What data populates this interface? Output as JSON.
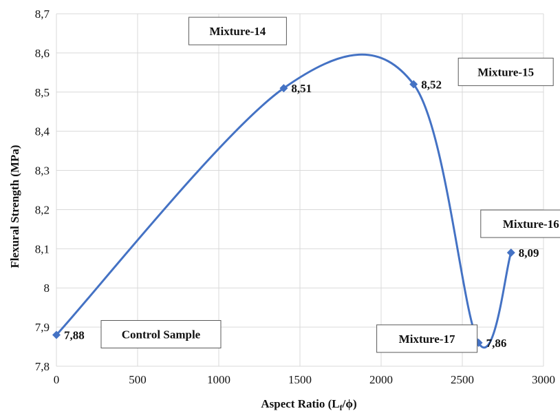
{
  "chart_data": {
    "type": "line",
    "title": "",
    "xlabel": "Aspect Ratio (L",
    "xlabel_sub": "f",
    "xlabel_tail": "/ϕ)",
    "ylabel": "Flexural Strength (MPa)",
    "xlim": [
      0,
      3000
    ],
    "ylim": [
      7.8,
      8.7
    ],
    "x_ticks": [
      0,
      500,
      1000,
      1500,
      2000,
      2500,
      3000
    ],
    "x_tick_labels": [
      "0",
      "500",
      "1000",
      "1500",
      "2000",
      "2500",
      "3000"
    ],
    "y_ticks": [
      7.8,
      7.9,
      8.0,
      8.1,
      8.2,
      8.3,
      8.4,
      8.5,
      8.6,
      8.7
    ],
    "y_tick_labels": [
      "7,8",
      "7,9",
      "8",
      "8,1",
      "8,2",
      "8,3",
      "8,4",
      "8,5",
      "8,6",
      "8,7"
    ],
    "grid": true,
    "legend": "none",
    "line_color": "#4472c4",
    "smooth": true,
    "series": [
      {
        "x": [
          0,
          1400,
          2200,
          2600,
          2800
        ],
        "y": [
          7.88,
          8.51,
          8.52,
          7.86,
          8.09
        ],
        "labels": [
          "7,88",
          "8,51",
          "8,52",
          "7,86",
          "8,09"
        ],
        "names": [
          "Control Sample",
          "Mixture-14",
          "Mixture-15",
          "Mixture-17",
          "Mixture-16"
        ]
      }
    ]
  }
}
